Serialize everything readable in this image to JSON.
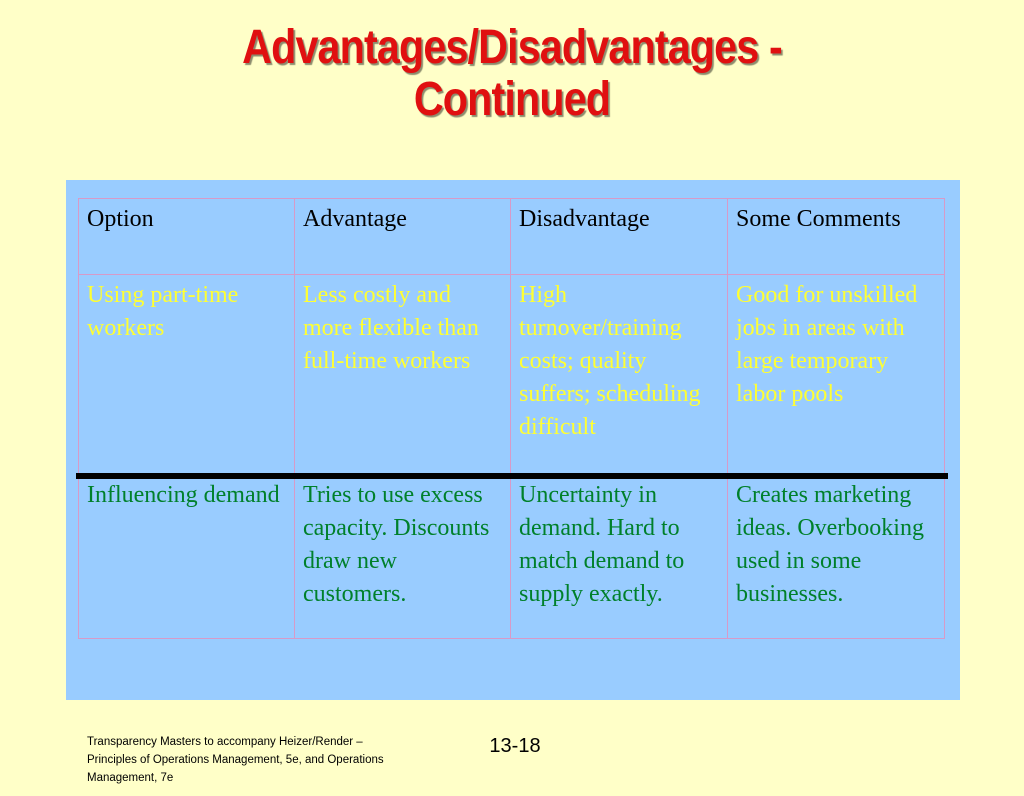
{
  "slide": {
    "title_line1": "Advantages/Disadvantages -",
    "title_line2": "Continued"
  },
  "table": {
    "headers": [
      "Option",
      "Advantage",
      "Disadvantage",
      "Some Comments"
    ],
    "rows": [
      [
        "Using part-time workers",
        "Less costly and more flexible than full-time workers",
        "High turnover/training costs; quality suffers; scheduling difficult",
        "Good for unskilled jobs in areas with large temporary labor pools"
      ],
      [
        "Influencing demand",
        "Tries to use excess capacity. Discounts draw new customers.",
        "Uncertainty in demand.  Hard to match demand to supply exactly.",
        "Creates marketing ideas. Overbooking used in some businesses."
      ]
    ]
  },
  "footer": {
    "note": "Transparency Masters to accompany Heizer/Render – Principles of Operations Management, 5e, and Operations Management, 7e",
    "page_number": "13-18"
  },
  "colors": {
    "background": "#ffffc8",
    "title": "#e01010",
    "panel": "#99ccff",
    "row1_text": "#ffff33",
    "row2_text": "#00802b",
    "grid_line": "#d79ac8"
  }
}
